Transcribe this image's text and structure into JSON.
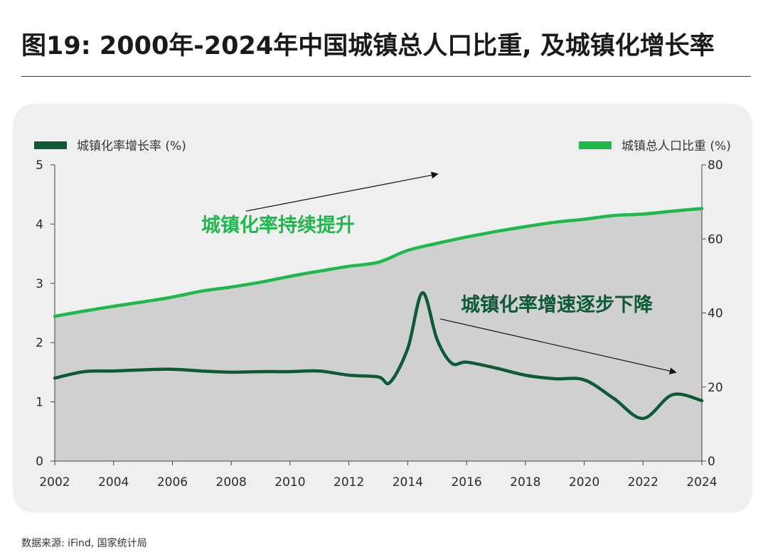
{
  "header": {
    "title": "图19: 2000年-2024年中国城镇总人口比重, 及城镇化增长率"
  },
  "footer": {
    "source": "数据来源: iFind, 国家统计局"
  },
  "colors": {
    "growth_line": "#0d5a37",
    "share_line": "#1fb84c",
    "area_fill": "#d0d0d0",
    "panel_bg": "#efefef"
  },
  "chart_data": {
    "type": "line",
    "title": "图19: 2000年-2024年中国城镇总人口比重, 及城镇化增长率",
    "xlim": [
      2002,
      2024
    ],
    "x_ticks": [
      "2002",
      "2004",
      "2006",
      "2008",
      "2010",
      "2012",
      "2014",
      "2016",
      "2018",
      "2020",
      "2022",
      "2024"
    ],
    "y_left": {
      "lim": [
        0,
        5
      ],
      "ticks": [
        "0",
        "1",
        "2",
        "3",
        "4",
        "5"
      ]
    },
    "y_right": {
      "lim": [
        0,
        80
      ],
      "ticks": [
        "0",
        "20",
        "40",
        "60",
        "80"
      ]
    },
    "grid": false,
    "legend_placement": "top",
    "series": [
      {
        "name": "城镇化率增长率 (%)",
        "axis": "left",
        "color": "#0d5a37",
        "x": [
          2002,
          2003,
          2004,
          2005,
          2006,
          2007,
          2008,
          2009,
          2010,
          2011,
          2012,
          2013,
          2013.4,
          2014,
          2014.5,
          2015,
          2015.5,
          2016,
          2017,
          2018,
          2019,
          2020,
          2021,
          2022,
          2023,
          2024
        ],
        "values": [
          1.4,
          1.51,
          1.52,
          1.54,
          1.55,
          1.52,
          1.5,
          1.51,
          1.51,
          1.52,
          1.45,
          1.42,
          1.33,
          1.9,
          2.84,
          2.05,
          1.65,
          1.67,
          1.57,
          1.45,
          1.39,
          1.37,
          1.06,
          0.72,
          1.12,
          1.02
        ]
      },
      {
        "name": "城镇总人口比重 (%)",
        "axis": "right",
        "color": "#1fb84c",
        "x": [
          2002,
          2003,
          2004,
          2005,
          2006,
          2007,
          2008,
          2009,
          2010,
          2011,
          2012,
          2013,
          2014,
          2015,
          2016,
          2017,
          2018,
          2019,
          2020,
          2021,
          2022,
          2023,
          2024
        ],
        "values": [
          39.1,
          40.5,
          41.8,
          43.0,
          44.3,
          45.9,
          47.0,
          48.3,
          49.9,
          51.3,
          52.6,
          53.7,
          56.9,
          58.8,
          60.5,
          62.0,
          63.3,
          64.5,
          65.3,
          66.3,
          66.7,
          67.5,
          68.2
        ]
      }
    ],
    "annotations": [
      {
        "text": "城镇化率持续提升",
        "arrow_from": [
          2008.5,
          67.5
        ],
        "arrow_to": [
          2015.0,
          77.5
        ]
      },
      {
        "text": "城镇化率增速逐步下降",
        "arrow_from": [
          2015.1,
          2.4
        ],
        "arrow_to": [
          2023.1,
          1.5
        ]
      }
    ]
  }
}
